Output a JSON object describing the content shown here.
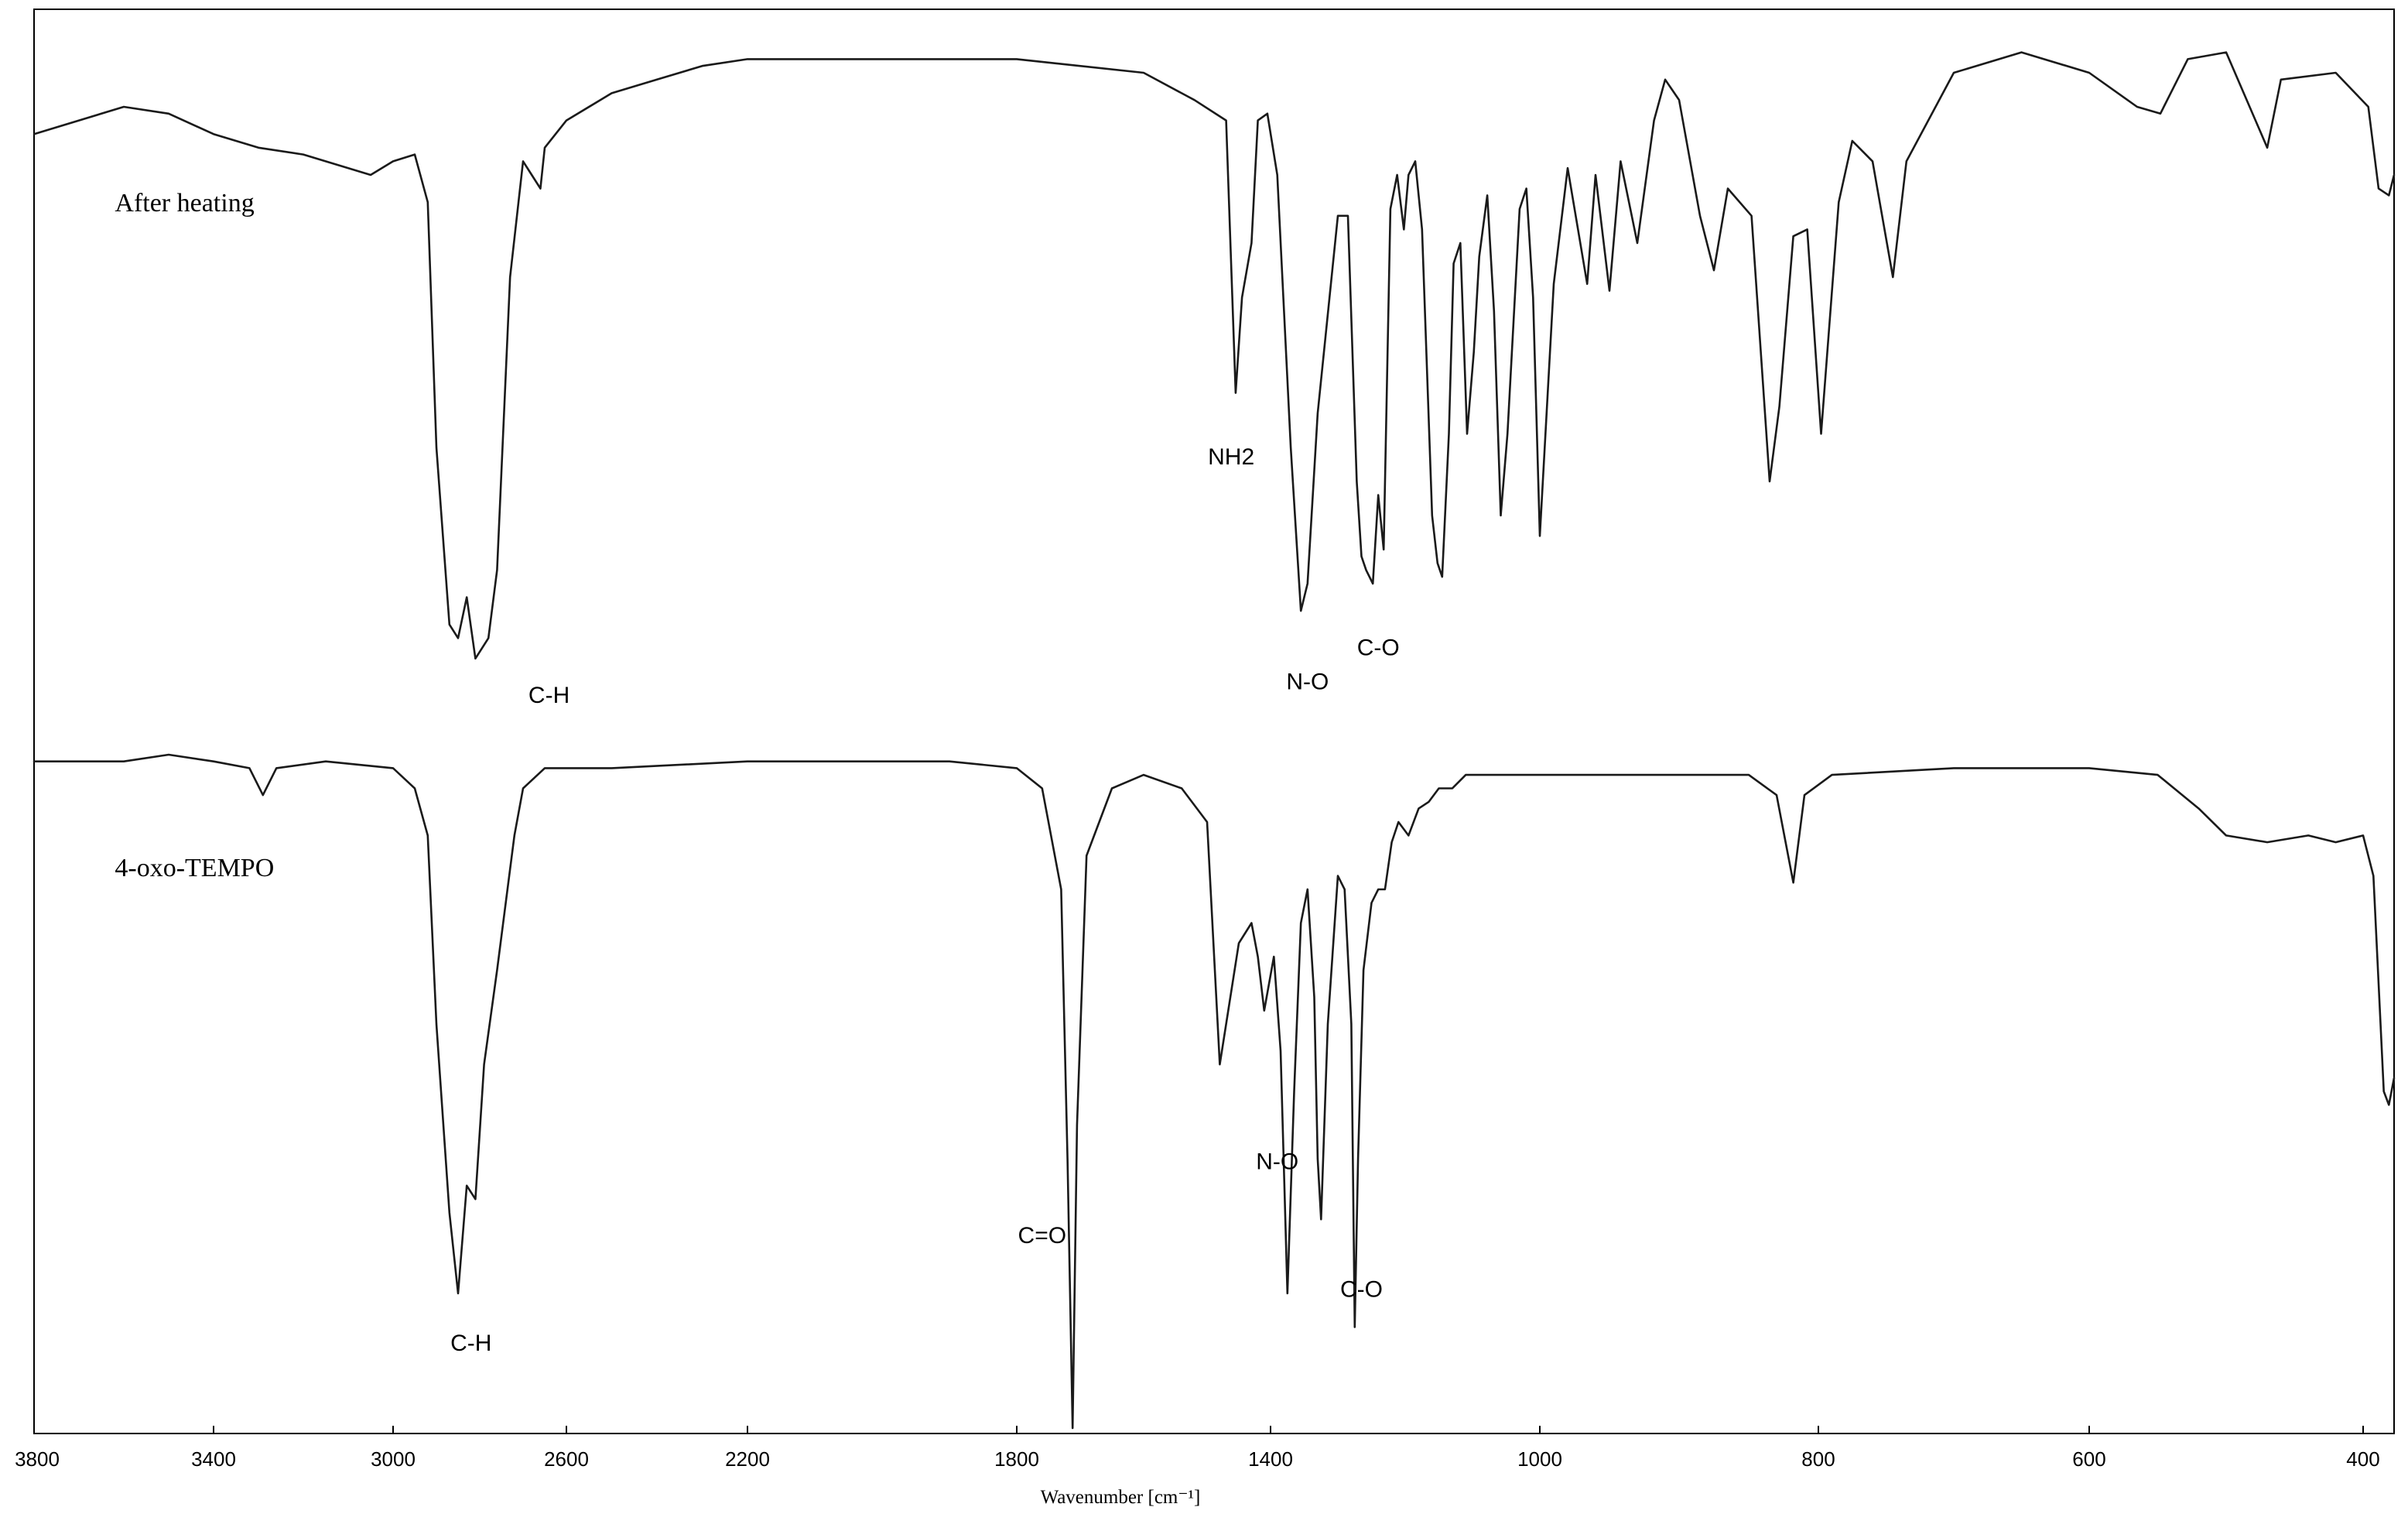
{
  "chart_data": {
    "type": "line",
    "xlabel": "Wavenumber [cm⁻¹]",
    "xlim": [
      3800,
      370
    ],
    "x_reversed": true,
    "xticks": [
      3800,
      3400,
      3000,
      2600,
      2200,
      1800,
      1400,
      1000,
      800,
      600,
      400
    ],
    "grid": false,
    "series": [
      {
        "name": "After heating",
        "points": [
          [
            3800,
            0.14
          ],
          [
            3600,
            0.1
          ],
          [
            3500,
            0.11
          ],
          [
            3400,
            0.14
          ],
          [
            3300,
            0.16
          ],
          [
            3200,
            0.17
          ],
          [
            3050,
            0.2
          ],
          [
            3000,
            0.18
          ],
          [
            2950,
            0.17
          ],
          [
            2920,
            0.24
          ],
          [
            2900,
            0.6
          ],
          [
            2870,
            0.86
          ],
          [
            2850,
            0.88
          ],
          [
            2830,
            0.82
          ],
          [
            2810,
            0.91
          ],
          [
            2780,
            0.88
          ],
          [
            2760,
            0.78
          ],
          [
            2730,
            0.35
          ],
          [
            2700,
            0.18
          ],
          [
            2680,
            0.2
          ],
          [
            2660,
            0.22
          ],
          [
            2650,
            0.16
          ],
          [
            2600,
            0.12
          ],
          [
            2500,
            0.08
          ],
          [
            2400,
            0.06
          ],
          [
            2300,
            0.04
          ],
          [
            2200,
            0.03
          ],
          [
            1800,
            0.03
          ],
          [
            1600,
            0.05
          ],
          [
            1520,
            0.09
          ],
          [
            1470,
            0.12
          ],
          [
            1455,
            0.52
          ],
          [
            1445,
            0.38
          ],
          [
            1430,
            0.3
          ],
          [
            1420,
            0.12
          ],
          [
            1405,
            0.11
          ],
          [
            1390,
            0.2
          ],
          [
            1370,
            0.6
          ],
          [
            1355,
            0.84
          ],
          [
            1345,
            0.8
          ],
          [
            1330,
            0.55
          ],
          [
            1300,
            0.26
          ],
          [
            1285,
            0.26
          ],
          [
            1272,
            0.65
          ],
          [
            1265,
            0.76
          ],
          [
            1258,
            0.78
          ],
          [
            1248,
            0.8
          ],
          [
            1240,
            0.67
          ],
          [
            1232,
            0.75
          ],
          [
            1222,
            0.25
          ],
          [
            1212,
            0.2
          ],
          [
            1202,
            0.28
          ],
          [
            1195,
            0.2
          ],
          [
            1185,
            0.18
          ],
          [
            1175,
            0.28
          ],
          [
            1160,
            0.7
          ],
          [
            1152,
            0.77
          ],
          [
            1145,
            0.79
          ],
          [
            1135,
            0.58
          ],
          [
            1128,
            0.33
          ],
          [
            1118,
            0.3
          ],
          [
            1108,
            0.58
          ],
          [
            1098,
            0.46
          ],
          [
            1090,
            0.32
          ],
          [
            1078,
            0.23
          ],
          [
            1068,
            0.4
          ],
          [
            1058,
            0.7
          ],
          [
            1048,
            0.58
          ],
          [
            1030,
            0.25
          ],
          [
            1020,
            0.22
          ],
          [
            1010,
            0.38
          ],
          [
            1000,
            0.73
          ],
          [
            990,
            0.36
          ],
          [
            980,
            0.19
          ],
          [
            966,
            0.36
          ],
          [
            960,
            0.2
          ],
          [
            950,
            0.37
          ],
          [
            942,
            0.18
          ],
          [
            930,
            0.3
          ],
          [
            918,
            0.12
          ],
          [
            910,
            0.06
          ],
          [
            900,
            0.09
          ],
          [
            885,
            0.26
          ],
          [
            875,
            0.34
          ],
          [
            865,
            0.22
          ],
          [
            848,
            0.26
          ],
          [
            835,
            0.65
          ],
          [
            828,
            0.54
          ],
          [
            818,
            0.29
          ],
          [
            808,
            0.28
          ],
          [
            798,
            0.58
          ],
          [
            785,
            0.24
          ],
          [
            775,
            0.15
          ],
          [
            760,
            0.18
          ],
          [
            745,
            0.35
          ],
          [
            735,
            0.18
          ],
          [
            700,
            0.05
          ],
          [
            650,
            0.02
          ],
          [
            600,
            0.05
          ],
          [
            565,
            0.1
          ],
          [
            548,
            0.11
          ],
          [
            528,
            0.03
          ],
          [
            500,
            0.02
          ],
          [
            470,
            0.16
          ],
          [
            460,
            0.06
          ],
          [
            420,
            0.05
          ],
          [
            395,
            0.1
          ],
          [
            385,
            0.22
          ],
          [
            375,
            0.23
          ],
          [
            370,
            0.2
          ]
        ]
      },
      {
        "name": "4-oxo-TEMPO",
        "points": [
          [
            3800,
            0.01
          ],
          [
            3600,
            0.01
          ],
          [
            3500,
            0.0
          ],
          [
            3400,
            0.01
          ],
          [
            3320,
            0.02
          ],
          [
            3290,
            0.06
          ],
          [
            3260,
            0.02
          ],
          [
            3150,
            0.01
          ],
          [
            3000,
            0.02
          ],
          [
            2950,
            0.05
          ],
          [
            2920,
            0.12
          ],
          [
            2900,
            0.4
          ],
          [
            2870,
            0.68
          ],
          [
            2850,
            0.8
          ],
          [
            2830,
            0.64
          ],
          [
            2810,
            0.66
          ],
          [
            2790,
            0.46
          ],
          [
            2760,
            0.32
          ],
          [
            2720,
            0.12
          ],
          [
            2700,
            0.05
          ],
          [
            2650,
            0.02
          ],
          [
            2500,
            0.02
          ],
          [
            2200,
            0.01
          ],
          [
            1900,
            0.01
          ],
          [
            1800,
            0.02
          ],
          [
            1760,
            0.05
          ],
          [
            1730,
            0.2
          ],
          [
            1720,
            0.6
          ],
          [
            1712,
            1.0
          ],
          [
            1705,
            0.55
          ],
          [
            1690,
            0.15
          ],
          [
            1650,
            0.05
          ],
          [
            1600,
            0.03
          ],
          [
            1540,
            0.05
          ],
          [
            1500,
            0.1
          ],
          [
            1480,
            0.46
          ],
          [
            1470,
            0.4
          ],
          [
            1450,
            0.28
          ],
          [
            1430,
            0.25
          ],
          [
            1420,
            0.3
          ],
          [
            1410,
            0.38
          ],
          [
            1395,
            0.3
          ],
          [
            1385,
            0.44
          ],
          [
            1375,
            0.8
          ],
          [
            1365,
            0.5
          ],
          [
            1355,
            0.25
          ],
          [
            1345,
            0.2
          ],
          [
            1335,
            0.36
          ],
          [
            1330,
            0.6
          ],
          [
            1325,
            0.69
          ],
          [
            1315,
            0.4
          ],
          [
            1300,
            0.18
          ],
          [
            1290,
            0.2
          ],
          [
            1280,
            0.4
          ],
          [
            1275,
            0.85
          ],
          [
            1270,
            0.6
          ],
          [
            1262,
            0.32
          ],
          [
            1250,
            0.22
          ],
          [
            1240,
            0.2
          ],
          [
            1230,
            0.2
          ],
          [
            1220,
            0.13
          ],
          [
            1210,
            0.1
          ],
          [
            1195,
            0.12
          ],
          [
            1180,
            0.08
          ],
          [
            1165,
            0.07
          ],
          [
            1150,
            0.05
          ],
          [
            1130,
            0.05
          ],
          [
            1110,
            0.03
          ],
          [
            1000,
            0.03
          ],
          [
            900,
            0.03
          ],
          [
            850,
            0.03
          ],
          [
            830,
            0.06
          ],
          [
            818,
            0.19
          ],
          [
            810,
            0.06
          ],
          [
            790,
            0.03
          ],
          [
            700,
            0.02
          ],
          [
            600,
            0.02
          ],
          [
            550,
            0.03
          ],
          [
            520,
            0.08
          ],
          [
            500,
            0.12
          ],
          [
            470,
            0.13
          ],
          [
            440,
            0.12
          ],
          [
            420,
            0.13
          ],
          [
            400,
            0.12
          ],
          [
            390,
            0.18
          ],
          [
            380,
            0.5
          ],
          [
            375,
            0.52
          ],
          [
            370,
            0.48
          ]
        ]
      }
    ],
    "annotations": [
      {
        "text": "After heating",
        "series": 0,
        "x": 3620
      },
      {
        "text": "NH2",
        "series": 0,
        "x": 1462,
        "y": 0.6
      },
      {
        "text": "C-H",
        "series": 0,
        "x": 2640,
        "y": 0.95
      },
      {
        "text": "N-O",
        "series": 0,
        "x": 1345,
        "y": 0.93
      },
      {
        "text": "C-O",
        "series": 0,
        "x": 1240,
        "y": 0.88
      },
      {
        "text": "4-oxo-TEMPO",
        "series": 1,
        "x": 3620
      },
      {
        "text": "C-H",
        "series": 1,
        "x": 2820,
        "y": 0.86
      },
      {
        "text": "C=O",
        "series": 1,
        "x": 1760,
        "y": 0.7
      },
      {
        "text": "N-O",
        "series": 1,
        "x": 1390,
        "y": 0.59
      },
      {
        "text": "C-O",
        "series": 1,
        "x": 1265,
        "y": 0.78
      }
    ]
  }
}
